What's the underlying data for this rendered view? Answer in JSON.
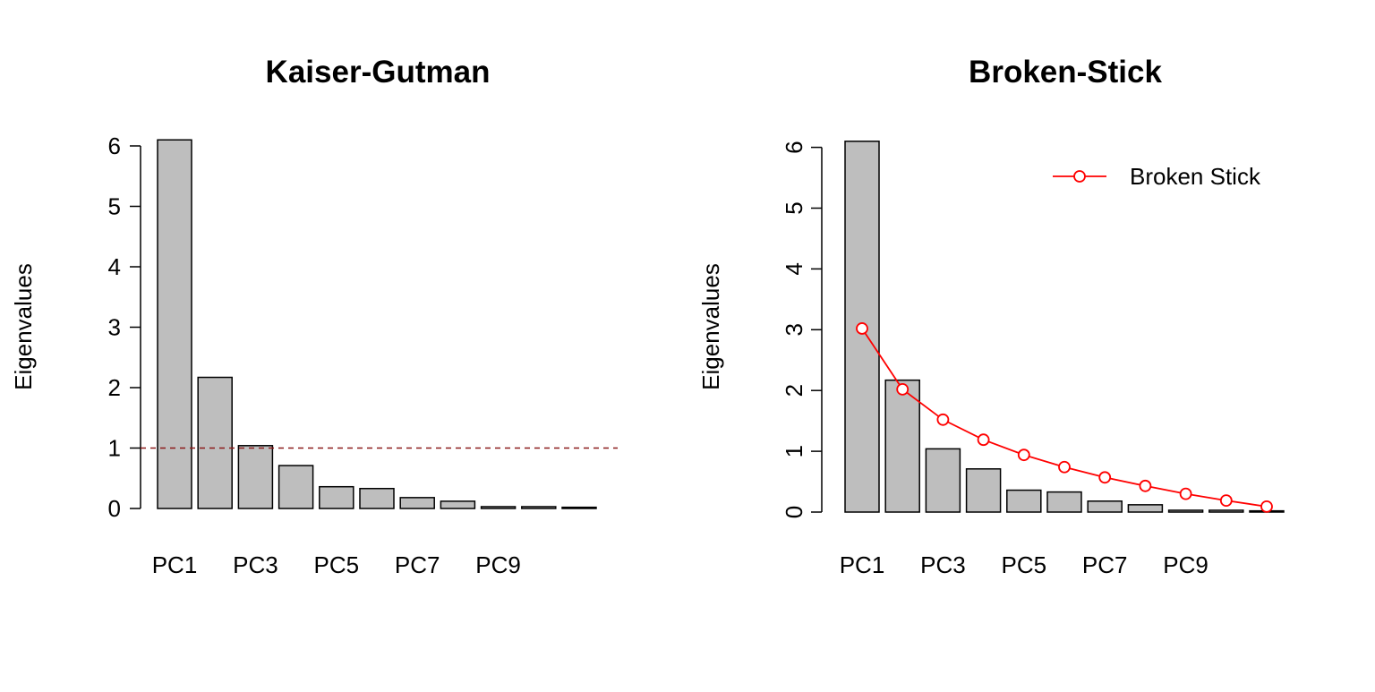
{
  "chart_data": [
    {
      "type": "bar",
      "title": "Kaiser-Gutman",
      "xlabel": "",
      "ylabel": "Eigenvalues",
      "categories": [
        "PC1",
        "PC2",
        "PC3",
        "PC4",
        "PC5",
        "PC6",
        "PC7",
        "PC8",
        "PC9",
        "PC10",
        "PC11"
      ],
      "category_labels_shown": [
        "PC1",
        "",
        "PC3",
        "",
        "PC5",
        "",
        "PC7",
        "",
        "PC9",
        "",
        ""
      ],
      "values": [
        6.1,
        2.17,
        1.04,
        0.71,
        0.36,
        0.33,
        0.18,
        0.12,
        0.03,
        0.03,
        0.02
      ],
      "yticks": [
        0,
        1,
        2,
        3,
        4,
        5,
        6
      ],
      "ylim": [
        0,
        6.1
      ],
      "reference_line": {
        "value": 1,
        "style": "dashed",
        "color": "#8b1a1a"
      },
      "bar_color": "#bebebe",
      "grid": false
    },
    {
      "type": "bar",
      "title": "Broken-Stick",
      "xlabel": "",
      "ylabel": "Eigenvalues",
      "categories": [
        "PC1",
        "PC2",
        "PC3",
        "PC4",
        "PC5",
        "PC6",
        "PC7",
        "PC8",
        "PC9",
        "PC10",
        "PC11"
      ],
      "category_labels_shown": [
        "PC1",
        "",
        "PC3",
        "",
        "PC5",
        "",
        "PC7",
        "",
        "PC9",
        "",
        ""
      ],
      "values": [
        6.1,
        2.17,
        1.04,
        0.71,
        0.36,
        0.33,
        0.18,
        0.12,
        0.03,
        0.03,
        0.02
      ],
      "yticks": [
        0,
        1,
        2,
        3,
        4,
        5,
        6
      ],
      "ylim": [
        0,
        6.1
      ],
      "bar_color": "#bebebe",
      "series": [
        {
          "name": "Broken Stick",
          "type": "line",
          "marker": "open-circle",
          "color": "#ff0000",
          "values": [
            3.02,
            2.02,
            1.52,
            1.19,
            0.94,
            0.74,
            0.57,
            0.43,
            0.3,
            0.19,
            0.09
          ]
        }
      ],
      "legend_position": "top-right",
      "grid": false
    }
  ]
}
